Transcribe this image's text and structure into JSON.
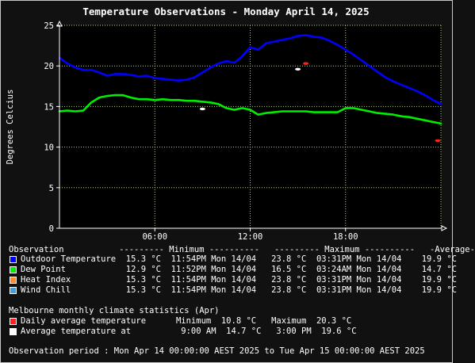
{
  "chart_data": {
    "type": "line",
    "title": "Temperature Observations - Monday April 14, 2025",
    "ylabel": "Degrees Celcius",
    "xlabel": "",
    "ylim": [
      0,
      25
    ],
    "xlim": [
      0,
      24
    ],
    "yticks": [
      "0",
      "5",
      "10",
      "15",
      "20",
      "25"
    ],
    "xticks": [
      {
        "hour": 6,
        "label": "06:00"
      },
      {
        "hour": 12,
        "label": "12:00"
      },
      {
        "hour": 18,
        "label": "18:00"
      }
    ],
    "grid": true,
    "series": [
      {
        "name": "Outdoor Temperature",
        "color": "#0000ff",
        "x": [
          0,
          0.5,
          1,
          1.5,
          2,
          2.5,
          3,
          3.5,
          4,
          4.5,
          5,
          5.5,
          6,
          6.5,
          7,
          7.5,
          8,
          8.5,
          9,
          9.5,
          10,
          10.5,
          11,
          11.5,
          12,
          12.5,
          13,
          13.5,
          14,
          14.5,
          15,
          15.5,
          16,
          16.5,
          17,
          17.5,
          18,
          18.5,
          19,
          19.5,
          20,
          20.5,
          21,
          21.5,
          22,
          22.5,
          23,
          23.5,
          24
        ],
        "y": [
          21.0,
          20.3,
          19.8,
          19.5,
          19.5,
          19.2,
          18.8,
          19.0,
          19.0,
          18.9,
          18.7,
          18.8,
          18.5,
          18.4,
          18.3,
          18.2,
          18.3,
          18.6,
          19.2,
          19.8,
          20.3,
          20.6,
          20.4,
          21.2,
          22.3,
          22.0,
          22.8,
          23.0,
          23.2,
          23.4,
          23.7,
          23.8,
          23.6,
          23.5,
          23.1,
          22.6,
          22.0,
          21.4,
          20.7,
          20.0,
          19.3,
          18.6,
          18.1,
          17.7,
          17.3,
          16.9,
          16.4,
          15.8,
          15.3
        ]
      },
      {
        "name": "Dew Point",
        "color": "#00ee00",
        "x": [
          0,
          0.5,
          1,
          1.5,
          2,
          2.5,
          3,
          3.5,
          4,
          4.5,
          5,
          5.5,
          6,
          6.5,
          7,
          7.5,
          8,
          8.5,
          9,
          9.5,
          10,
          10.5,
          11,
          11.5,
          12,
          12.5,
          13,
          13.5,
          14,
          14.5,
          15,
          15.5,
          16,
          16.5,
          17,
          17.5,
          18,
          18.5,
          19,
          19.5,
          20,
          20.5,
          21,
          21.5,
          22,
          22.5,
          23,
          23.5,
          24
        ],
        "y": [
          14.4,
          14.5,
          14.4,
          14.5,
          15.5,
          16.1,
          16.3,
          16.4,
          16.4,
          16.1,
          15.9,
          15.9,
          15.8,
          15.9,
          15.8,
          15.8,
          15.7,
          15.7,
          15.6,
          15.5,
          15.3,
          14.8,
          14.6,
          14.8,
          14.6,
          14.0,
          14.2,
          14.3,
          14.4,
          14.4,
          14.4,
          14.4,
          14.3,
          14.3,
          14.3,
          14.3,
          14.8,
          14.8,
          14.6,
          14.4,
          14.2,
          14.1,
          14.0,
          13.8,
          13.7,
          13.5,
          13.3,
          13.1,
          12.9
        ]
      }
    ],
    "markers": [
      {
        "name": "Daily average temperature maximum",
        "color": "#ff2020",
        "x": 15.5,
        "y": 20.3
      },
      {
        "name": "Daily average temperature minimum",
        "color": "#ff2020",
        "x": 23.8,
        "y": 10.8
      },
      {
        "name": "Average temperature at 9:00 AM",
        "color": "#ffffff",
        "x": 9.0,
        "y": 14.7
      },
      {
        "name": "Average temperature at 3:00 PM",
        "color": "#ffffff",
        "x": 15.0,
        "y": 19.6
      }
    ],
    "colors": {
      "background": "#111111",
      "plot_background": "#000000",
      "grid": "#b8d66e",
      "text": "#ffffff",
      "heat_index": "#ff8c32",
      "wind_chill": "#3ca0e6"
    }
  },
  "legend": {
    "header": "Observation           --------- Minimum ----------   --------- Maximum ----------   -Average-",
    "rows": [
      {
        "color": "#0000ff",
        "text": "Outdoor Temperature  15.3 °C  11:54PM Mon 14/04   23.8 °C  03:31PM Mon 14/04    19.9 °C"
      },
      {
        "color": "#00ee00",
        "text": "Dew Point            12.9 °C  11:52PM Mon 14/04   16.5 °C  03:24AM Mon 14/04    14.7 °C"
      },
      {
        "color": "#ff8c32",
        "text": "Heat Index           15.3 °C  11:54PM Mon 14/04   23.8 °C  03:31PM Mon 14/04    19.9 °C"
      },
      {
        "color": "#3ca0e6",
        "text": "Wind Chill           15.3 °C  11:54PM Mon 14/04   23.8 °C  03:31PM Mon 14/04    19.9 °C"
      }
    ]
  },
  "climate": {
    "header": "Melbourne monthly climate statistics (Apr)",
    "rows": [
      {
        "color": "#ff2020",
        "text": "Daily average temperature      Minimum  10.8 °C   Maximum  20.3 °C"
      },
      {
        "color": "#ffffff",
        "text": "Average temperature at          9:00 AM  14.7 °C   3:00 PM  19.6 °C"
      }
    ]
  },
  "footer": {
    "period": "Observation period : Mon Apr 14 00:00:00 AEST 2025 to Tue Apr 15 00:00:00 AEST 2025"
  }
}
